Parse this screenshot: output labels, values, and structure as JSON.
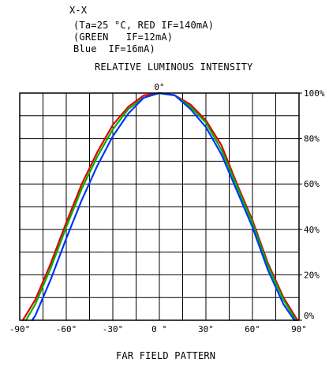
{
  "header": {
    "line1": "X-X",
    "line2": "(Ta=25 °C, RED IF=140mA)",
    "line3": "(GREEN   IF=12mA)",
    "line4": "Blue  IF=16mA)"
  },
  "chart_data": {
    "type": "line",
    "title": "RELATIVE LUMINOUS INTENSITY",
    "xlabel": "FAR FIELD PATTERN",
    "ylabel": "",
    "x_top_marker": "0°",
    "xlim": [
      -90,
      90
    ],
    "ylim": [
      0,
      100
    ],
    "x_ticks": [
      -90,
      -60,
      -30,
      0,
      30,
      60,
      90
    ],
    "x_tick_labels": [
      "-90°",
      "-60°",
      "-30°",
      "0 °",
      "30°",
      "60°",
      "90°"
    ],
    "y_ticks": [
      0,
      20,
      40,
      60,
      80,
      100
    ],
    "y_tick_labels": [
      "0%",
      "20%",
      "40%",
      "60%",
      "80%",
      "100%"
    ],
    "grid": true,
    "series": [
      {
        "name": "RED",
        "color": "#e00000",
        "x": [
          -88,
          -80,
          -70,
          -60,
          -50,
          -40,
          -30,
          -20,
          -10,
          0,
          10,
          20,
          30,
          40,
          50,
          60,
          70,
          80,
          89
        ],
        "values": [
          0,
          9,
          25,
          43,
          60,
          74,
          86,
          94,
          99,
          100,
          99,
          95,
          88,
          77,
          60,
          44,
          25,
          10,
          0
        ]
      },
      {
        "name": "GREEN",
        "color": "#00b000",
        "x": [
          -86,
          -80,
          -70,
          -60,
          -50,
          -40,
          -30,
          -20,
          -10,
          0,
          10,
          20,
          30,
          40,
          50,
          60,
          70,
          80,
          88
        ],
        "values": [
          0,
          7,
          23,
          41,
          58,
          72,
          84,
          93,
          98,
          100,
          99,
          94,
          87,
          75,
          59,
          43,
          24,
          9,
          0
        ]
      },
      {
        "name": "Blue",
        "color": "#0033ff",
        "x": [
          -82,
          -80,
          -70,
          -60,
          -50,
          -40,
          -30,
          -20,
          -10,
          0,
          10,
          20,
          30,
          40,
          50,
          60,
          70,
          80,
          87
        ],
        "values": [
          0,
          2,
          18,
          36,
          53,
          68,
          81,
          91,
          98,
          100,
          99,
          93,
          85,
          73,
          57,
          41,
          22,
          7,
          0
        ]
      }
    ]
  }
}
